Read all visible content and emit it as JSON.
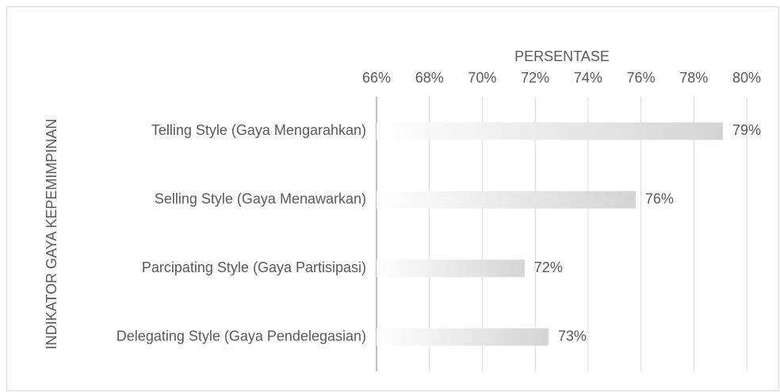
{
  "chart_data": {
    "type": "bar",
    "orientation": "horizontal",
    "x_label": "PERSENTASE",
    "y_label": "INDIKATOR GAYA KEPEMIMPINAN",
    "categories": [
      "Telling Style (Gaya Mengarahkan)",
      "Selling Style (Gaya Menawarkan)",
      "Parcipating Style (Gaya Partisipasi)",
      "Delegating Style (Gaya Pendelegasian)"
    ],
    "values": [
      79.1,
      75.8,
      71.6,
      72.5
    ],
    "value_labels": [
      "79%",
      "76%",
      "72%",
      "73%"
    ],
    "color": "#d4d4d4",
    "xlim": [
      66,
      80
    ],
    "xticks": [
      {
        "value": 66,
        "label": "66%"
      },
      {
        "value": 68,
        "label": "68%"
      },
      {
        "value": 70,
        "label": "70%"
      },
      {
        "value": 72,
        "label": "72%"
      },
      {
        "value": 74,
        "label": "74%"
      },
      {
        "value": 76,
        "label": "76%"
      },
      {
        "value": 78,
        "label": "78%"
      },
      {
        "value": 80,
        "label": "80%"
      }
    ],
    "grid": true
  }
}
